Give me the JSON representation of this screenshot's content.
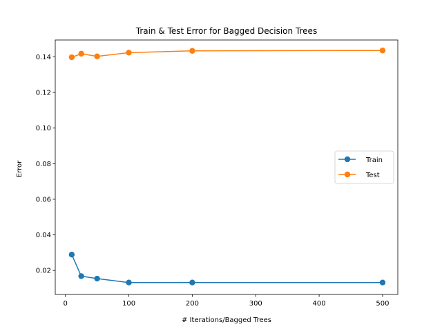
{
  "chart_data": {
    "type": "line",
    "title": "Train & Test Error for Bagged Decision Trees",
    "xlabel": "# Iterations/Bagged Trees",
    "ylabel": "Error",
    "xlim": [
      -16,
      524
    ],
    "ylim": [
      0.0065,
      0.1495
    ],
    "x_ticks": [
      0,
      100,
      200,
      300,
      400,
      500
    ],
    "y_ticks": [
      0.02,
      0.04,
      0.06,
      0.08,
      0.1,
      0.12,
      0.14
    ],
    "y_tick_labels": [
      "0.02",
      "0.04",
      "0.06",
      "0.08",
      "0.10",
      "0.12",
      "0.14"
    ],
    "grid": false,
    "legend_position": "center-right",
    "series": [
      {
        "name": "Train",
        "color": "#1f77b4",
        "marker": "circle",
        "x": [
          10,
          25,
          50,
          100,
          200,
          500
        ],
        "y": [
          0.0289,
          0.0168,
          0.0154,
          0.0132,
          0.0132,
          0.0132
        ]
      },
      {
        "name": "Test",
        "color": "#ff7f0e",
        "marker": "circle",
        "x": [
          10,
          25,
          50,
          100,
          200,
          500
        ],
        "y": [
          0.1398,
          0.1418,
          0.1403,
          0.1424,
          0.1434,
          0.1436
        ]
      }
    ]
  }
}
